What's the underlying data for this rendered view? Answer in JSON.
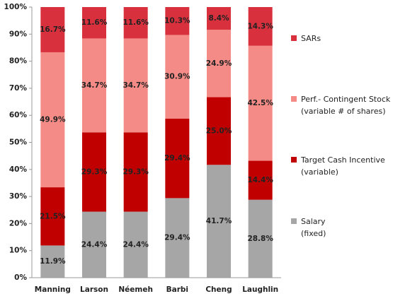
{
  "chart_data": {
    "type": "stacked_bar",
    "categories": [
      "Manning",
      "Larson",
      "Néemeh",
      "Barbi",
      "Cheng",
      "Laughlin"
    ],
    "series": [
      {
        "name": "Salary\n(fixed)",
        "color": "#a6a6a6",
        "values": [
          11.9,
          24.4,
          24.4,
          29.4,
          41.7,
          28.8
        ],
        "value_labels": [
          "11.9%",
          "24.4%",
          "24.4%",
          "29.4%",
          "41.7%",
          "28.8%"
        ]
      },
      {
        "name": "Target Cash Incentive\n(variable)",
        "color": "#c00000",
        "values": [
          21.5,
          29.3,
          29.3,
          29.4,
          25.0,
          14.4
        ],
        "value_labels": [
          "21.5%",
          "29.3%",
          "29.3%",
          "29.4%",
          "25.0%",
          "14.4%"
        ]
      },
      {
        "name": "Perf.- Contingent Stock\n(variable # of shares)",
        "color": "#f48b86",
        "values": [
          49.9,
          34.7,
          34.7,
          30.9,
          24.9,
          42.5
        ],
        "value_labels": [
          "49.9%",
          "34.7%",
          "34.7%",
          "30.9%",
          "24.9%",
          "42.5%"
        ]
      },
      {
        "name": "SARs",
        "color": "#d9303e",
        "values": [
          16.7,
          11.6,
          11.6,
          10.3,
          8.4,
          14.3
        ],
        "value_labels": [
          "16.7%",
          "11.6%",
          "11.6%",
          "10.3%",
          "8.4%",
          "14.3%"
        ]
      }
    ],
    "ylim": [
      0,
      100
    ],
    "yticks": [
      {
        "value": 0,
        "label": "0%"
      },
      {
        "value": 10,
        "label": "10%"
      },
      {
        "value": 20,
        "label": "20%"
      },
      {
        "value": 30,
        "label": "30%"
      },
      {
        "value": 40,
        "label": "40%"
      },
      {
        "value": 50,
        "label": "50%"
      },
      {
        "value": 60,
        "label": "60%"
      },
      {
        "value": 70,
        "label": "70%"
      },
      {
        "value": 80,
        "label": "80%"
      },
      {
        "value": 90,
        "label": "90%"
      },
      {
        "value": 100,
        "label": "100%"
      }
    ],
    "grid": false
  }
}
